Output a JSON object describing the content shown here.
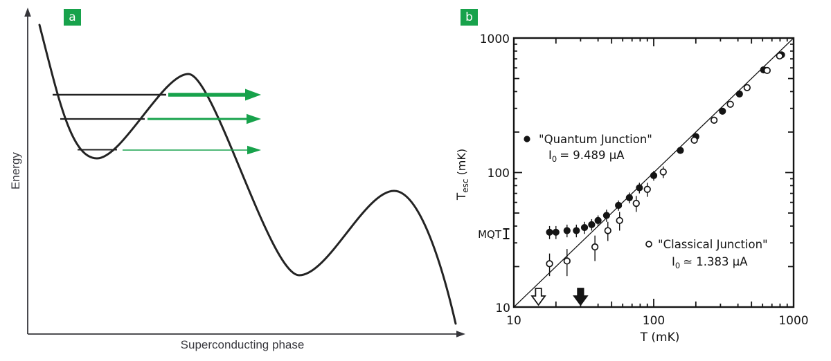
{
  "figure": {
    "accent_green": "#17a24b",
    "ink_color": "#141414"
  },
  "panel_a": {
    "label": "a",
    "ylabel": "Energy",
    "xlabel": "Superconducting phase"
  },
  "panel_b": {
    "label": "b",
    "ylabel_base": "T",
    "ylabel_sub": "esc",
    "ylabel_unit": " (mK)",
    "xlabel": "T (mK)",
    "mqt_label": "MQT",
    "x_tick_labels": [
      "10",
      "100",
      "1000"
    ],
    "y_tick_labels": [
      "10",
      "100",
      "1000"
    ],
    "legend_quantum_line1": "\"Quantum Junction\"",
    "legend_quantum_I_base": "I",
    "legend_quantum_I_sub": "0",
    "legend_quantum_I_value": "= 9.489 μA",
    "legend_classical_line1": "\"Classical Junction\"",
    "legend_classical_I_base": "I",
    "legend_classical_I_sub": "0",
    "legend_classical_I_value": "≃ 1.383 μA"
  },
  "chart_data": [
    {
      "type": "line",
      "title": "Tilted washboard potential of a Josephson junction",
      "xlabel": "Superconducting phase",
      "ylabel": "Energy",
      "axes_numeric_values_shown": false,
      "features": {
        "energy_levels_in_well": 3,
        "escape_arrows": [
          {
            "level": "top",
            "thickness": "thick"
          },
          {
            "level": "middle",
            "thickness": "medium"
          },
          {
            "level": "bottom",
            "thickness": "thin"
          }
        ],
        "shape": [
          "steep descent",
          "metastable well with quantized levels",
          "barrier peak",
          "second minimum",
          "second peak",
          "final descent"
        ]
      }
    },
    {
      "type": "scatter",
      "xscale": "log",
      "yscale": "log",
      "xlim": [
        10,
        1000
      ],
      "ylim": [
        10,
        1000
      ],
      "xlabel": "T (mK)",
      "ylabel": "T_esc (mK)",
      "grid": false,
      "reference_line": {
        "label": "T_esc = T",
        "x": [
          10,
          1000
        ],
        "y": [
          10,
          1000
        ]
      },
      "series": [
        {
          "name": "\"Quantum Junction\" I0 = 9.489 μA",
          "marker": "filled-circle",
          "x": [
            18,
            20,
            24,
            28,
            32,
            36,
            40,
            46,
            56,
            67,
            79,
            100,
            155,
            200,
            310,
            410,
            610,
            820
          ],
          "y": [
            36,
            36,
            37,
            37,
            39,
            41,
            44,
            48,
            57,
            65,
            77,
            95,
            146,
            185,
            286,
            384,
            580,
            750
          ],
          "yerr": [
            4,
            4,
            4,
            4,
            4,
            4,
            4,
            5,
            5,
            6,
            7,
            8,
            0,
            0,
            0,
            0,
            0,
            0
          ]
        },
        {
          "name": "\"Classical Junction\" I0 ≃ 1.383 μA",
          "marker": "open-circle",
          "x": [
            18,
            24,
            38,
            47,
            57,
            75,
            90,
            117,
            195,
            270,
            353,
            465,
            647,
            794
          ],
          "y": [
            21,
            22,
            28,
            37,
            44,
            59,
            75,
            101,
            174,
            245,
            322,
            428,
            574,
            736
          ],
          "yerr": [
            4,
            5,
            6,
            6,
            7,
            8,
            9,
            10,
            8,
            0,
            0,
            0,
            0,
            0
          ]
        }
      ],
      "annotations": {
        "mqt_marker": {
          "label": "MQT",
          "T_esc_mK": 35
        },
        "hollow_down_arrow_T_mK": 15,
        "solid_down_arrow_T_mK": 30
      }
    }
  ]
}
